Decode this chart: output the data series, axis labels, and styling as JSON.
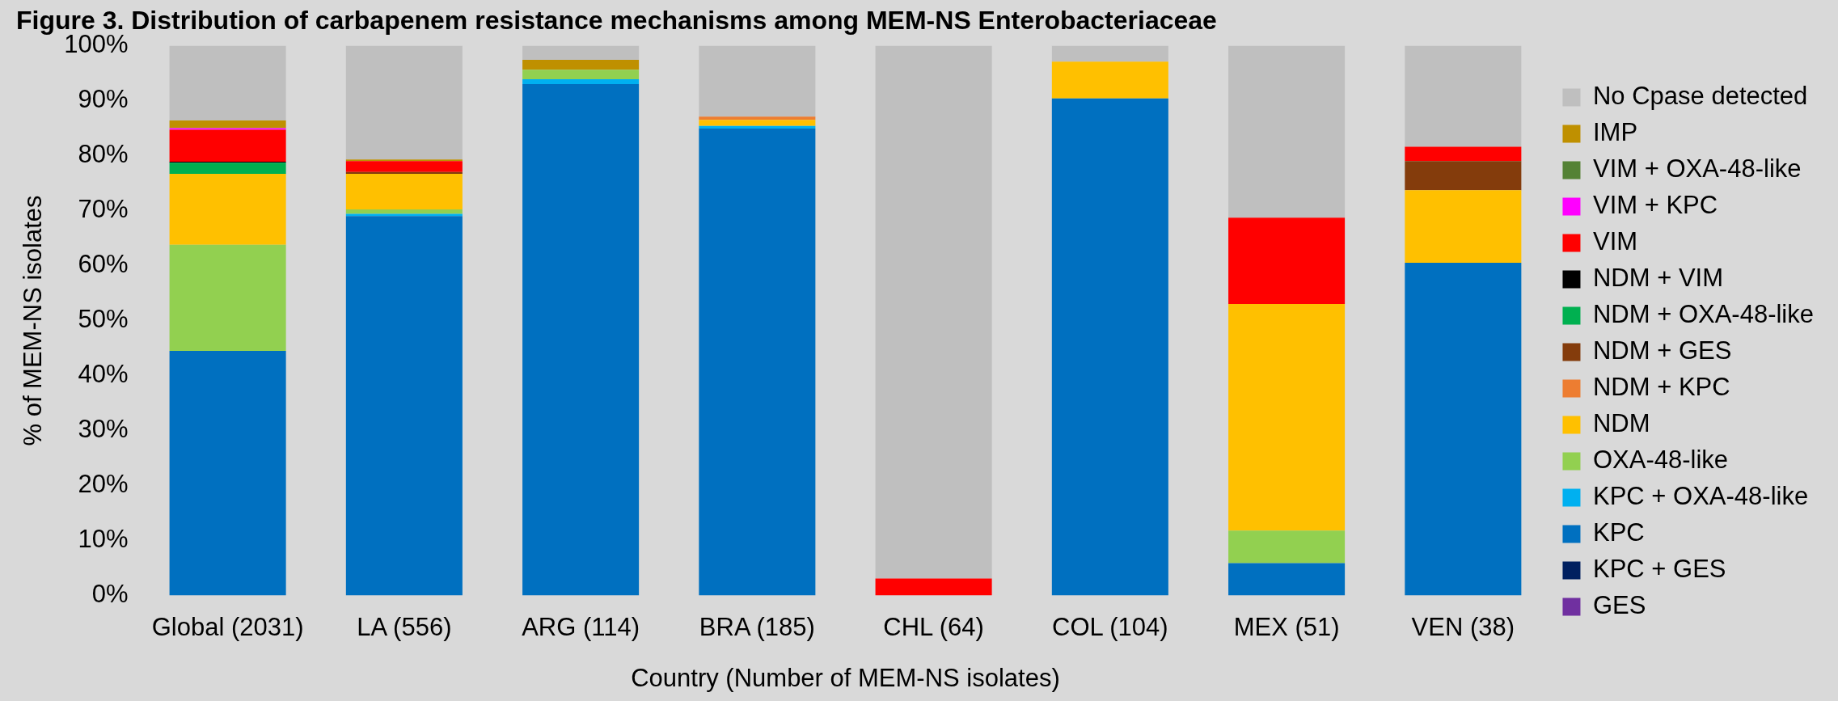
{
  "chart_data": {
    "type": "bar",
    "stacked": true,
    "title": "Figure 3. Distribution of carbapenem resistance mechanisms among MEM-NS Enterobacteriaceae",
    "xlabel": "Country (Number of MEM-NS isolates)",
    "ylabel": "% of MEM-NS isolates",
    "categories": [
      "Global (2031)",
      "LA (556)",
      "ARG (114)",
      "BRA (185)",
      "CHL (64)",
      "COL (104)",
      "MEX (51)",
      "VEN (38)"
    ],
    "ylim": [
      0,
      100
    ],
    "yticks": [
      {
        "value": 0,
        "label": "0%"
      },
      {
        "value": 10,
        "label": "10%"
      },
      {
        "value": 20,
        "label": "20%"
      },
      {
        "value": 30,
        "label": "30%"
      },
      {
        "value": 40,
        "label": "40%"
      },
      {
        "value": 50,
        "label": "50%"
      },
      {
        "value": 60,
        "label": "60%"
      },
      {
        "value": 70,
        "label": "70%"
      },
      {
        "value": 80,
        "label": "80%"
      },
      {
        "value": 90,
        "label": "90%"
      },
      {
        "value": 100,
        "label": "100%"
      }
    ],
    "grid": false,
    "legend": "right",
    "series": [
      {
        "name": "GES",
        "color": "#7030a0",
        "values": [
          0,
          0,
          0,
          0,
          0,
          0,
          0,
          0
        ]
      },
      {
        "name": "KPC + GES",
        "color": "#002060",
        "values": [
          0,
          0,
          0,
          0,
          0,
          0,
          0,
          0
        ]
      },
      {
        "name": "KPC",
        "color": "#0070c0",
        "values": [
          44.5,
          69.0,
          93.0,
          84.9,
          0,
          90.4,
          5.9,
          60.5
        ]
      },
      {
        "name": "KPC + OXA-48-like",
        "color": "#00b0f0",
        "values": [
          0,
          0.4,
          0.9,
          0.5,
          0,
          0,
          0,
          0
        ]
      },
      {
        "name": "OXA-48-like",
        "color": "#92d050",
        "values": [
          19.3,
          0.8,
          1.7,
          0,
          0,
          0,
          5.9,
          0
        ]
      },
      {
        "name": "NDM",
        "color": "#ffc000",
        "values": [
          12.9,
          6.5,
          0,
          1.1,
          0,
          6.7,
          41.2,
          13.2
        ]
      },
      {
        "name": "NDM + KPC",
        "color": "#ed7d31",
        "values": [
          0,
          0,
          0,
          0.6,
          0,
          0,
          0,
          0
        ]
      },
      {
        "name": "NDM + GES",
        "color": "#843c0c",
        "values": [
          0,
          0.3,
          0,
          0,
          0,
          0,
          0,
          5.3
        ]
      },
      {
        "name": "NDM + OXA-48-like",
        "color": "#00b050",
        "values": [
          2.0,
          0,
          0,
          0,
          0,
          0,
          0,
          0
        ]
      },
      {
        "name": "NDM + VIM",
        "color": "#000000",
        "values": [
          0.2,
          0,
          0,
          0,
          0,
          0,
          0,
          0
        ]
      },
      {
        "name": "VIM",
        "color": "#ff0000",
        "values": [
          5.8,
          2.0,
          0,
          0,
          3.1,
          0,
          15.7,
          2.6
        ]
      },
      {
        "name": "VIM + KPC",
        "color": "#ff00ff",
        "values": [
          0.3,
          0,
          0,
          0,
          0,
          0,
          0,
          0
        ]
      },
      {
        "name": "VIM + OXA-48-like",
        "color": "#548235",
        "values": [
          0,
          0,
          0,
          0,
          0,
          0,
          0,
          0
        ]
      },
      {
        "name": "IMP",
        "color": "#bf9000",
        "values": [
          1.4,
          0.3,
          1.8,
          0,
          0,
          0,
          0,
          0
        ]
      },
      {
        "name": "No Cpase detected",
        "color": "#bfbfbf",
        "values": [
          13.6,
          20.7,
          2.6,
          12.9,
          96.9,
          2.9,
          31.3,
          18.4
        ]
      }
    ]
  }
}
